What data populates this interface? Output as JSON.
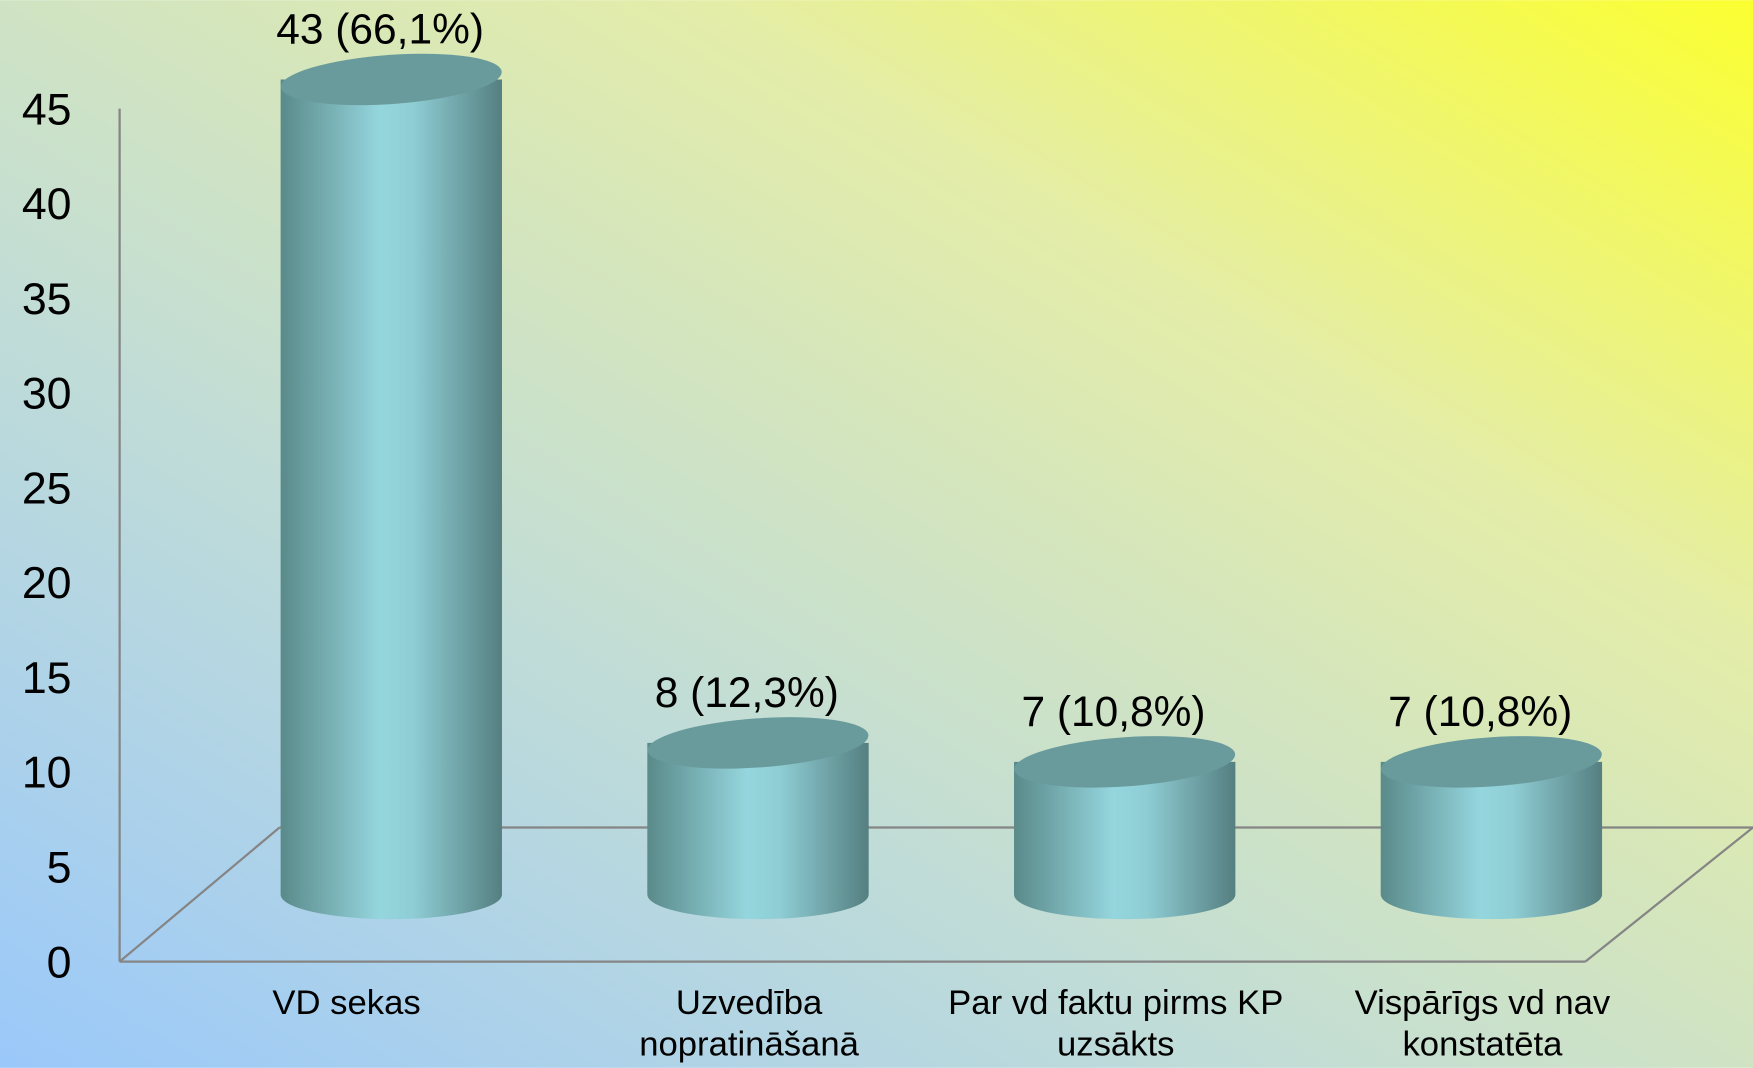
{
  "chart_data": {
    "type": "bar",
    "categories": [
      "VD sekas",
      "Uzvedība nopratināšanā",
      "Par vd faktu pirms KP uzsākts",
      "Vispārīgs vd nav konstatēta"
    ],
    "values": [
      43,
      8,
      7,
      7
    ],
    "value_labels": [
      "43 (66,1%)",
      "8 (12,3%)",
      "7 (10,8%)",
      "7 (10,8%)"
    ],
    "color": "#93d5dc",
    "ylim": [
      0,
      45
    ],
    "yticks": [
      0,
      5,
      10,
      15,
      20,
      25,
      30,
      35,
      40,
      45
    ],
    "grid": false
  }
}
